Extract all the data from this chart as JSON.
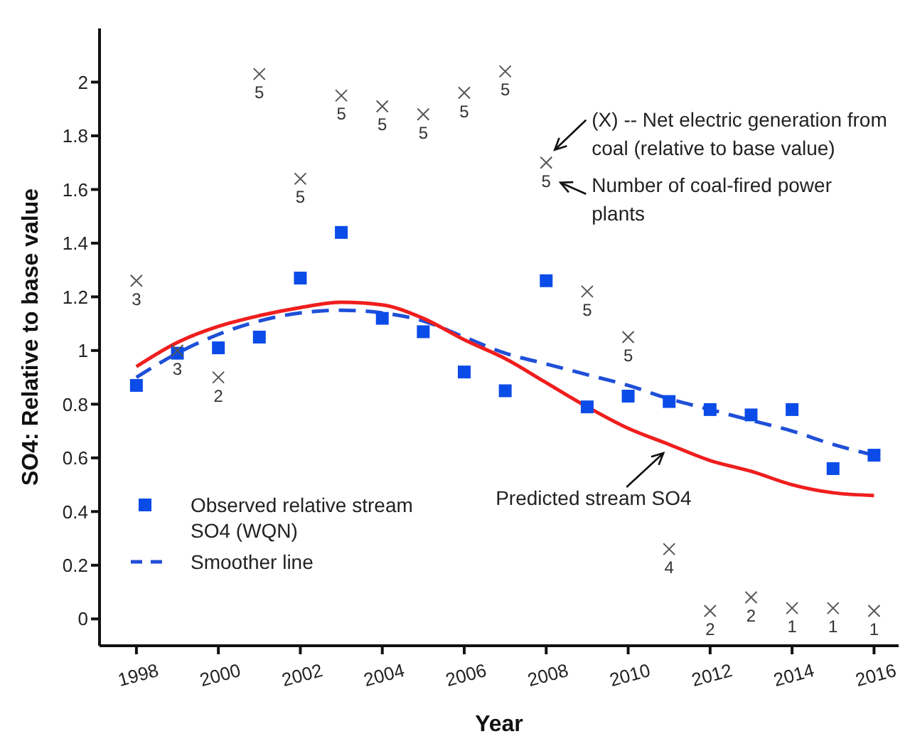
{
  "chart_data": {
    "type": "scatter",
    "xlabel": "Year",
    "ylabel": "SO4: Relative to base value",
    "x": [
      1998,
      1999,
      2000,
      2001,
      2002,
      2003,
      2004,
      2005,
      2006,
      2007,
      2008,
      2009,
      2010,
      2011,
      2012,
      2013,
      2014,
      2015,
      2016
    ],
    "series": [
      {
        "name": "Observed relative stream SO4 (WQN)",
        "marker": "square",
        "color": "#0b4be8",
        "values": [
          0.87,
          0.99,
          1.01,
          1.05,
          1.27,
          1.44,
          1.12,
          1.07,
          0.92,
          0.85,
          1.26,
          0.79,
          0.83,
          0.81,
          0.78,
          0.76,
          0.78,
          0.56,
          0.61
        ]
      },
      {
        "name": "Smoother line",
        "type": "line",
        "marker": "none",
        "line_style": "dashed",
        "color": "#1f4fd8",
        "values": [
          0.9,
          0.99,
          1.06,
          1.11,
          1.14,
          1.15,
          1.14,
          1.11,
          1.05,
          0.99,
          0.95,
          0.91,
          0.87,
          0.82,
          0.78,
          0.74,
          0.7,
          0.65,
          0.61
        ]
      },
      {
        "type": "line",
        "marker": "none",
        "line_style": "solid",
        "color": "#f01e1e",
        "values": [
          0.94,
          1.03,
          1.09,
          1.13,
          1.16,
          1.18,
          1.17,
          1.12,
          1.04,
          0.97,
          0.88,
          0.79,
          0.71,
          0.65,
          0.59,
          0.55,
          0.5,
          0.47,
          0.46
        ]
      },
      {
        "marker": "cross",
        "color": "#555555",
        "values": [
          1.26,
          1.0,
          0.9,
          2.03,
          1.64,
          1.95,
          1.91,
          1.88,
          1.96,
          2.04,
          1.7,
          1.22,
          1.05,
          0.26,
          0.03,
          0.08,
          0.04,
          0.04,
          0.03
        ]
      }
    ],
    "xlim": [
      1997.1,
      2016.6
    ],
    "xticks": [
      1998,
      2000,
      2002,
      2004,
      2006,
      2008,
      2010,
      2012,
      2014,
      2016
    ],
    "ylim": [
      -0.1,
      2.2
    ],
    "yticks": [
      0,
      0.2,
      0.4,
      0.6,
      0.8,
      1,
      1.2,
      1.4,
      1.6,
      1.8,
      2
    ],
    "grid": false,
    "legend": "bottom left",
    "annotations": [
      {
        "text": "(X) -- Net electric generation from coal (relative to base value)",
        "x": 2008,
        "y": 1.7
      },
      {
        "text": "Number of coal-fired power plants",
        "x": 2008,
        "y": 1.7
      },
      {
        "text": "Predicted stream SO4",
        "x": 2011,
        "y": 0.65
      },
      {
        "text": "3",
        "x": 1998,
        "y": 1.26
      },
      {
        "text": "3",
        "x": 1999,
        "y": 1.0
      },
      {
        "text": "2",
        "x": 2000,
        "y": 0.9
      },
      {
        "text": "5",
        "x": 2001,
        "y": 2.03
      },
      {
        "text": "5",
        "x": 2002,
        "y": 1.64
      },
      {
        "text": "5",
        "x": 2003,
        "y": 1.95
      },
      {
        "text": "5",
        "x": 2004,
        "y": 1.91
      },
      {
        "text": "5",
        "x": 2005,
        "y": 1.88
      },
      {
        "text": "5",
        "x": 2006,
        "y": 1.96
      },
      {
        "text": "5",
        "x": 2007,
        "y": 2.04
      },
      {
        "text": "5",
        "x": 2008,
        "y": 1.7
      },
      {
        "text": "5",
        "x": 2009,
        "y": 1.22
      },
      {
        "text": "5",
        "x": 2010,
        "y": 1.05
      },
      {
        "text": "4",
        "x": 2011,
        "y": 0.26
      },
      {
        "text": "2",
        "x": 2012,
        "y": 0.03
      },
      {
        "text": "2",
        "x": 2013,
        "y": 0.08
      },
      {
        "text": "1",
        "x": 2014,
        "y": 0.04
      },
      {
        "text": "1",
        "x": 2015,
        "y": 0.04
      },
      {
        "text": "1",
        "x": 2016,
        "y": 0.03
      }
    ]
  }
}
